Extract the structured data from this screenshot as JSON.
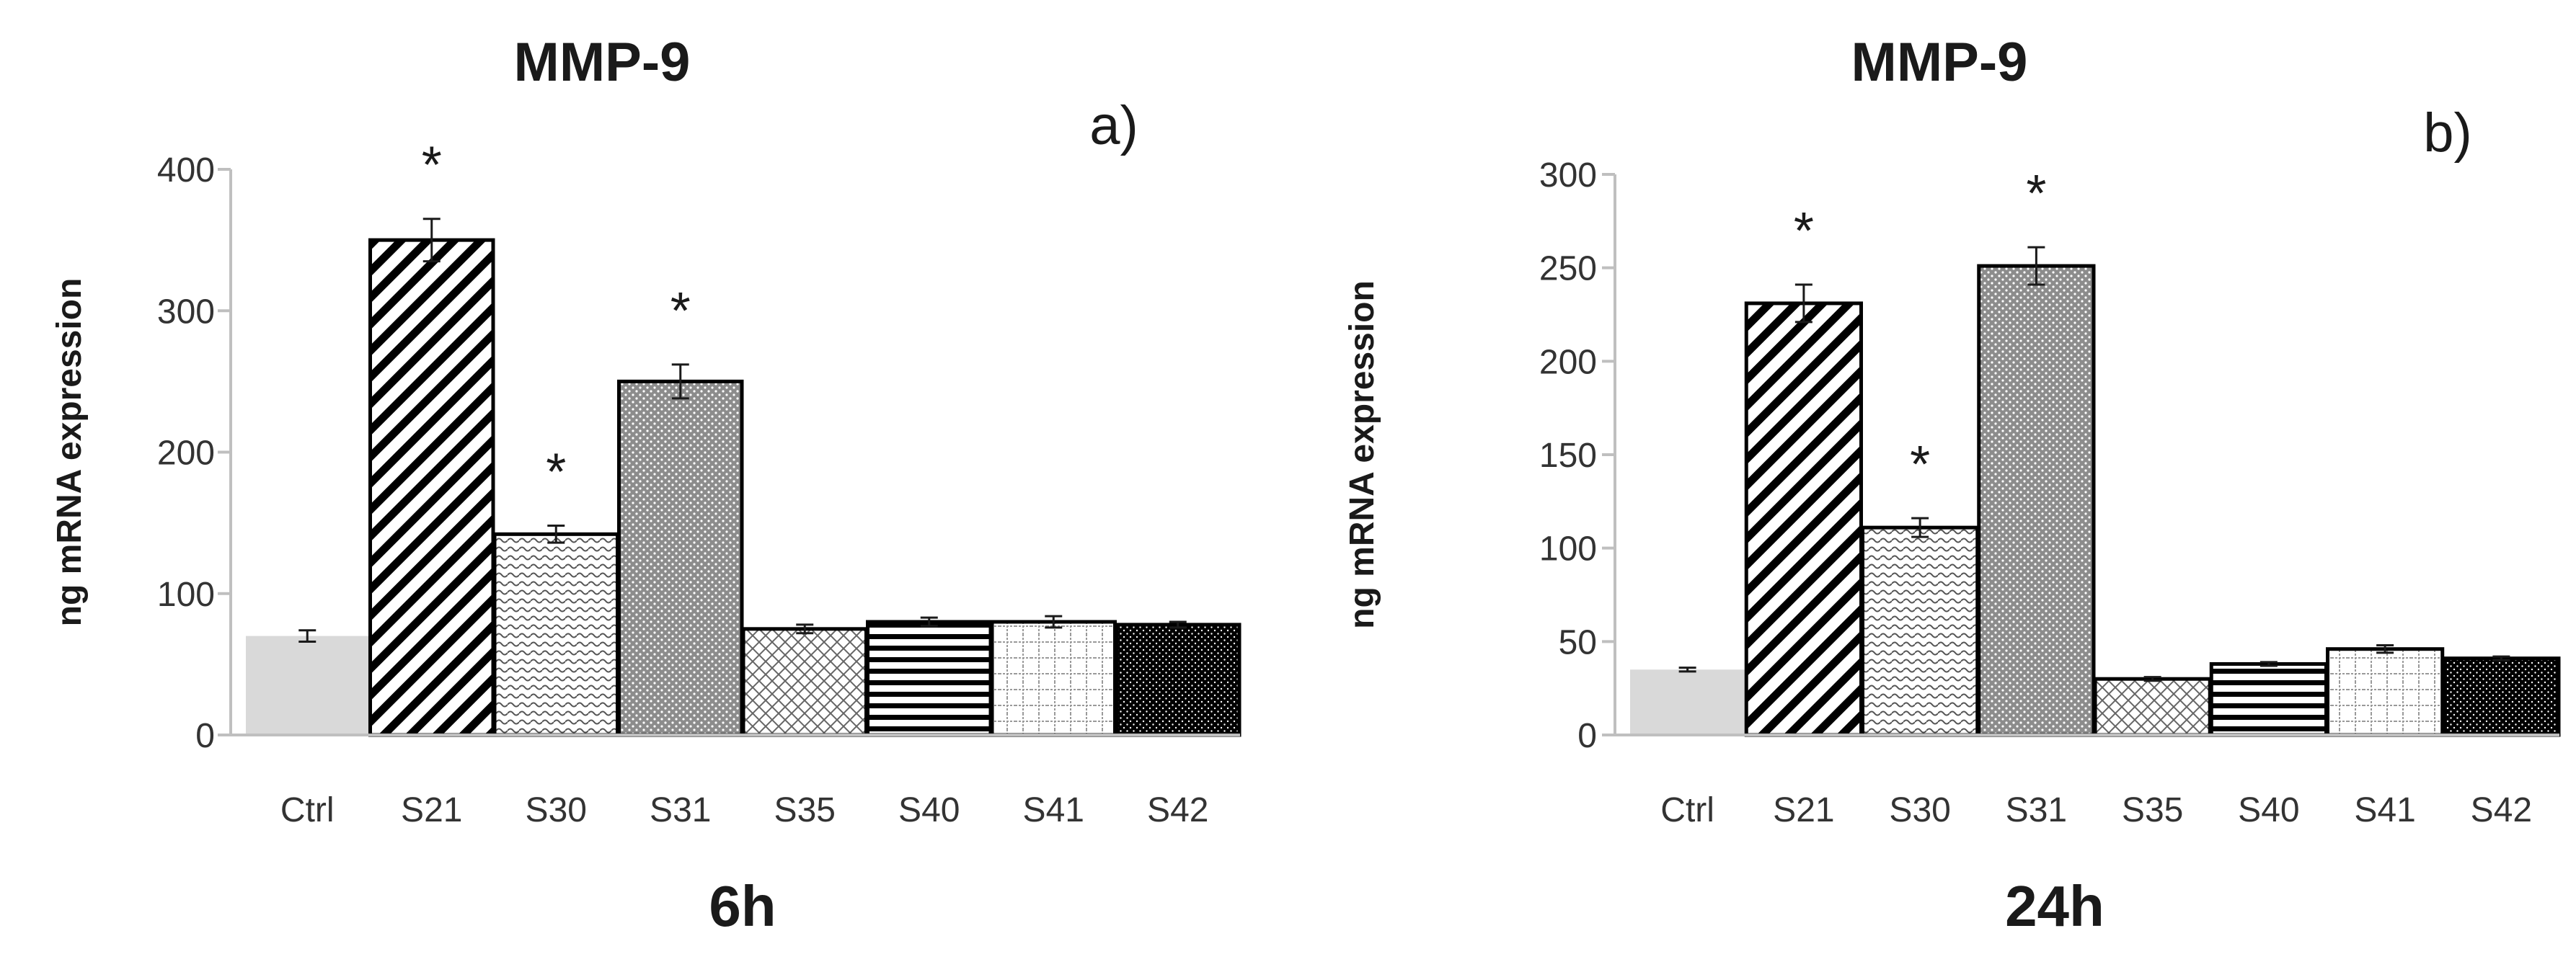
{
  "chart_data": [
    {
      "type": "bar",
      "title": "MMP-9",
      "panel_label": "a)",
      "xlabel": "6h",
      "ylabel": "ng mRNA expression",
      "ylim": [
        0,
        400
      ],
      "yticks": [
        0,
        100,
        200,
        300,
        400
      ],
      "grid": false,
      "categories": [
        "Ctrl",
        "S21",
        "S30",
        "S31",
        "S35",
        "S40",
        "S41",
        "S42"
      ],
      "values": [
        70,
        350,
        142,
        250,
        75,
        80,
        80,
        78
      ],
      "errors": [
        4,
        15,
        6,
        12,
        3,
        3,
        4,
        2
      ],
      "significance": [
        "",
        "*",
        "*",
        "*",
        "",
        "",
        "",
        ""
      ],
      "patterns": [
        "solid-light",
        "diagonal",
        "wave",
        "dots",
        "crosshatch",
        "horizontal",
        "grid",
        "dense-dots"
      ]
    },
    {
      "type": "bar",
      "title": "MMP-9",
      "panel_label": "b)",
      "xlabel": "24h",
      "ylabel": "ng mRNA expression",
      "ylim": [
        0,
        300
      ],
      "yticks": [
        0,
        50,
        100,
        150,
        200,
        250,
        300
      ],
      "grid": false,
      "categories": [
        "Ctrl",
        "S21",
        "S30",
        "S31",
        "S35",
        "S40",
        "S41",
        "S42"
      ],
      "values": [
        35,
        231,
        111,
        251,
        30,
        38,
        46,
        41
      ],
      "errors": [
        1,
        10,
        5,
        10,
        1,
        1,
        2,
        1
      ],
      "significance": [
        "",
        "*",
        "*",
        "*",
        "",
        "",
        "",
        ""
      ],
      "patterns": [
        "solid-light",
        "diagonal",
        "wave",
        "dots",
        "crosshatch",
        "horizontal",
        "grid",
        "dense-dots"
      ]
    }
  ]
}
